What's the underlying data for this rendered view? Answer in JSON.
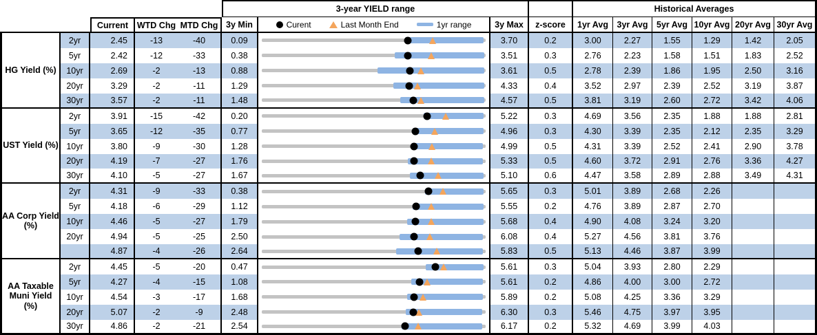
{
  "header": {
    "range_section_title": "3-year YIELD range",
    "historical_section_title": "Historical Averages",
    "columns": {
      "current": "Current",
      "wtd": "WTD Chg",
      "mtd": "MTD Chg",
      "min": "3y Min",
      "max": "3y Max",
      "z": "z-score",
      "avgs": [
        "1yr Avg",
        "3yr Avg",
        "5yr Avg",
        "10yr Avg",
        "20yr Avg",
        "30yr Avg"
      ]
    },
    "legend": {
      "current": "Curent",
      "last_month": "Last Month End",
      "range_1yr": "1yr range"
    }
  },
  "colors": {
    "stripe": "#BDD1E8",
    "bar_blue": "#8EB4E3",
    "track_gray": "#C3C3C3",
    "marker_orange": "#F4A55C",
    "marker_black": "#000000"
  },
  "chart_data": {
    "type": "table",
    "note": "Each row is a bullet chart: gray track spans 3y Min to 3y Max, blue bar is 1yr range (estimated), black dot = Current, orange triangle = Last Month End",
    "groups": [
      {
        "label": "HG Yield (%)",
        "rows": [
          {
            "tenor": "2yr",
            "current": "2.45",
            "wtd": "-13",
            "mtd": "-40",
            "min3y": "0.09",
            "max3y": "3.70",
            "z": "0.2",
            "avgs": [
              "3.00",
              "2.27",
              "1.55",
              "1.29",
              "1.42",
              "2.05"
            ],
            "range1yr": [
              2.4,
              3.67
            ],
            "lm": 2.85
          },
          {
            "tenor": "5yr",
            "current": "2.42",
            "wtd": "-12",
            "mtd": "-33",
            "min3y": "0.38",
            "max3y": "3.51",
            "z": "0.3",
            "avgs": [
              "2.76",
              "2.23",
              "1.58",
              "1.51",
              "1.83",
              "2.52"
            ],
            "range1yr": [
              2.24,
              3.49
            ],
            "lm": 2.75
          },
          {
            "tenor": "10yr",
            "current": "2.69",
            "wtd": "-2",
            "mtd": "-13",
            "min3y": "0.88",
            "max3y": "3.61",
            "z": "0.5",
            "avgs": [
              "2.78",
              "2.39",
              "1.86",
              "1.95",
              "2.50",
              "3.16"
            ],
            "range1yr": [
              2.29,
              3.59
            ],
            "lm": 2.82
          },
          {
            "tenor": "20yr",
            "current": "3.29",
            "wtd": "-2",
            "mtd": "-11",
            "min3y": "1.29",
            "max3y": "4.33",
            "z": "0.4",
            "avgs": [
              "3.52",
              "2.97",
              "2.39",
              "2.52",
              "3.19",
              "3.87"
            ],
            "range1yr": [
              3.08,
              4.31
            ],
            "lm": 3.4
          },
          {
            "tenor": "30yr",
            "current": "3.57",
            "wtd": "-2",
            "mtd": "-11",
            "min3y": "1.48",
            "max3y": "4.57",
            "z": "0.5",
            "avgs": [
              "3.81",
              "3.19",
              "2.60",
              "2.72",
              "3.42",
              "4.06"
            ],
            "range1yr": [
              3.39,
              4.55
            ],
            "lm": 3.68
          }
        ]
      },
      {
        "label": "UST Yield (%)",
        "rows": [
          {
            "tenor": "2yr",
            "current": "3.91",
            "wtd": "-15",
            "mtd": "-42",
            "min3y": "0.20",
            "max3y": "5.22",
            "z": "0.3",
            "avgs": [
              "4.69",
              "3.56",
              "2.35",
              "1.88",
              "1.88",
              "2.81"
            ],
            "range1yr": [
              3.83,
              5.17
            ],
            "lm": 4.33
          },
          {
            "tenor": "5yr",
            "current": "3.65",
            "wtd": "-12",
            "mtd": "-35",
            "min3y": "0.77",
            "max3y": "4.96",
            "z": "0.3",
            "avgs": [
              "4.30",
              "3.39",
              "2.35",
              "2.12",
              "2.35",
              "3.29"
            ],
            "range1yr": [
              3.59,
              4.92
            ],
            "lm": 4.0
          },
          {
            "tenor": "10yr",
            "current": "3.80",
            "wtd": "-9",
            "mtd": "-30",
            "min3y": "1.28",
            "max3y": "4.99",
            "z": "0.5",
            "avgs": [
              "4.31",
              "3.39",
              "2.52",
              "2.41",
              "2.90",
              "3.78"
            ],
            "range1yr": [
              3.76,
              4.95
            ],
            "lm": 4.1
          },
          {
            "tenor": "20yr",
            "current": "4.19",
            "wtd": "-7",
            "mtd": "-27",
            "min3y": "1.76",
            "max3y": "5.33",
            "z": "0.5",
            "avgs": [
              "4.60",
              "3.72",
              "2.91",
              "2.76",
              "3.36",
              "4.27"
            ],
            "range1yr": [
              4.09,
              5.29
            ],
            "lm": 4.46
          },
          {
            "tenor": "30yr",
            "current": "4.10",
            "wtd": "-5",
            "mtd": "-27",
            "min3y": "1.67",
            "max3y": "5.10",
            "z": "0.6",
            "avgs": [
              "4.47",
              "3.58",
              "2.89",
              "2.88",
              "3.49",
              "4.31"
            ],
            "range1yr": [
              3.94,
              5.07
            ],
            "lm": 4.37
          }
        ]
      },
      {
        "label": "AA Corp Yield\n(%)",
        "rows": [
          {
            "tenor": "2yr",
            "current": "4.31",
            "wtd": "-9",
            "mtd": "-33",
            "min3y": "0.38",
            "max3y": "5.65",
            "z": "0.3",
            "avgs": [
              "5.01",
              "3.89",
              "2.68",
              "2.26",
              "",
              ""
            ],
            "range1yr": [
              4.22,
              5.6
            ],
            "lm": 4.64
          },
          {
            "tenor": "5yr",
            "current": "4.18",
            "wtd": "-6",
            "mtd": "-29",
            "min3y": "1.12",
            "max3y": "5.55",
            "z": "0.2",
            "avgs": [
              "4.76",
              "3.89",
              "2.87",
              "2.70",
              "",
              ""
            ],
            "range1yr": [
              4.1,
              5.51
            ],
            "lm": 4.47
          },
          {
            "tenor": "10yr",
            "current": "4.46",
            "wtd": "-5",
            "mtd": "-27",
            "min3y": "1.79",
            "max3y": "5.68",
            "z": "0.4",
            "avgs": [
              "4.90",
              "4.08",
              "3.24",
              "3.20",
              "",
              ""
            ],
            "range1yr": [
              4.31,
              5.64
            ],
            "lm": 4.73
          },
          {
            "tenor": "20yr",
            "current": "4.94",
            "wtd": "-5",
            "mtd": "-25",
            "min3y": "2.50",
            "max3y": "6.08",
            "z": "0.4",
            "avgs": [
              "5.27",
              "4.56",
              "3.81",
              "3.76",
              "",
              ""
            ],
            "range1yr": [
              4.7,
              6.04
            ],
            "lm": 5.19
          },
          {
            "tenor": "",
            "current": "4.87",
            "wtd": "-4",
            "mtd": "-26",
            "min3y": "2.64",
            "max3y": "5.83",
            "z": "0.5",
            "avgs": [
              "5.13",
              "4.46",
              "3.87",
              "3.99",
              "",
              ""
            ],
            "range1yr": [
              4.55,
              5.79
            ],
            "lm": 5.13
          }
        ]
      },
      {
        "label": "AA Taxable\nMuni Yield\n(%)",
        "rows": [
          {
            "tenor": "2yr",
            "current": "4.45",
            "wtd": "-5",
            "mtd": "-20",
            "min3y": "0.47",
            "max3y": "5.61",
            "z": "0.3",
            "avgs": [
              "5.04",
              "3.93",
              "2.80",
              "2.29",
              "",
              ""
            ],
            "range1yr": [
              4.24,
              5.56
            ],
            "lm": 4.65
          },
          {
            "tenor": "5yr",
            "current": "4.27",
            "wtd": "-4",
            "mtd": "-15",
            "min3y": "1.08",
            "max3y": "5.61",
            "z": "0.2",
            "avgs": [
              "4.86",
              "4.00",
              "3.00",
              "2.72",
              "",
              ""
            ],
            "range1yr": [
              4.11,
              5.56
            ],
            "lm": 4.42
          },
          {
            "tenor": "10yr",
            "current": "4.54",
            "wtd": "-3",
            "mtd": "-17",
            "min3y": "1.68",
            "max3y": "5.89",
            "z": "0.2",
            "avgs": [
              "5.08",
              "4.25",
              "3.36",
              "3.29",
              "",
              ""
            ],
            "range1yr": [
              4.41,
              5.84
            ],
            "lm": 4.71
          },
          {
            "tenor": "20yr",
            "current": "5.07",
            "wtd": "-2",
            "mtd": "-9",
            "min3y": "2.48",
            "max3y": "6.30",
            "z": "0.3",
            "avgs": [
              "5.46",
              "4.75",
              "3.97",
              "3.95",
              "",
              ""
            ],
            "range1yr": [
              4.94,
              6.24
            ],
            "lm": 5.16
          },
          {
            "tenor": "30yr",
            "current": "4.86",
            "wtd": "-2",
            "mtd": "-21",
            "min3y": "2.54",
            "max3y": "6.17",
            "z": "0.2",
            "avgs": [
              "5.32",
              "4.69",
              "3.99",
              "4.03",
              "",
              ""
            ],
            "range1yr": [
              4.81,
              6.11
            ],
            "lm": 5.07
          }
        ]
      }
    ]
  }
}
